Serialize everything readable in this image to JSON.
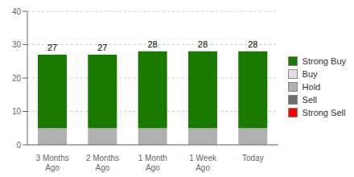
{
  "chart_data": {
    "type": "bar",
    "stacked": true,
    "categories": [
      "3 Months\nAgo",
      "2 Months\nAgo",
      "1 Month\nAgo",
      "1 Week\nAgo",
      "Today"
    ],
    "series": [
      {
        "name": "Strong Buy",
        "color": "#1a7a00",
        "values": [
          22,
          22,
          23,
          23,
          23
        ]
      },
      {
        "name": "Buy",
        "color": "#e0e0e0",
        "values": [
          0,
          0,
          0,
          0,
          0
        ]
      },
      {
        "name": "Hold",
        "color": "#b0b0b0",
        "values": [
          5,
          5,
          5,
          5,
          5
        ]
      },
      {
        "name": "Sell",
        "color": "#707070",
        "values": [
          0,
          0,
          0,
          0,
          0
        ]
      },
      {
        "name": "Strong Sell",
        "color": "#ff0000",
        "values": [
          0,
          0,
          0,
          0,
          0
        ]
      }
    ],
    "totals": [
      27,
      27,
      28,
      28,
      28
    ],
    "ylim": [
      0,
      40
    ],
    "yticks": [
      0,
      10,
      20,
      30,
      40
    ],
    "grid": true,
    "legend": "right"
  }
}
